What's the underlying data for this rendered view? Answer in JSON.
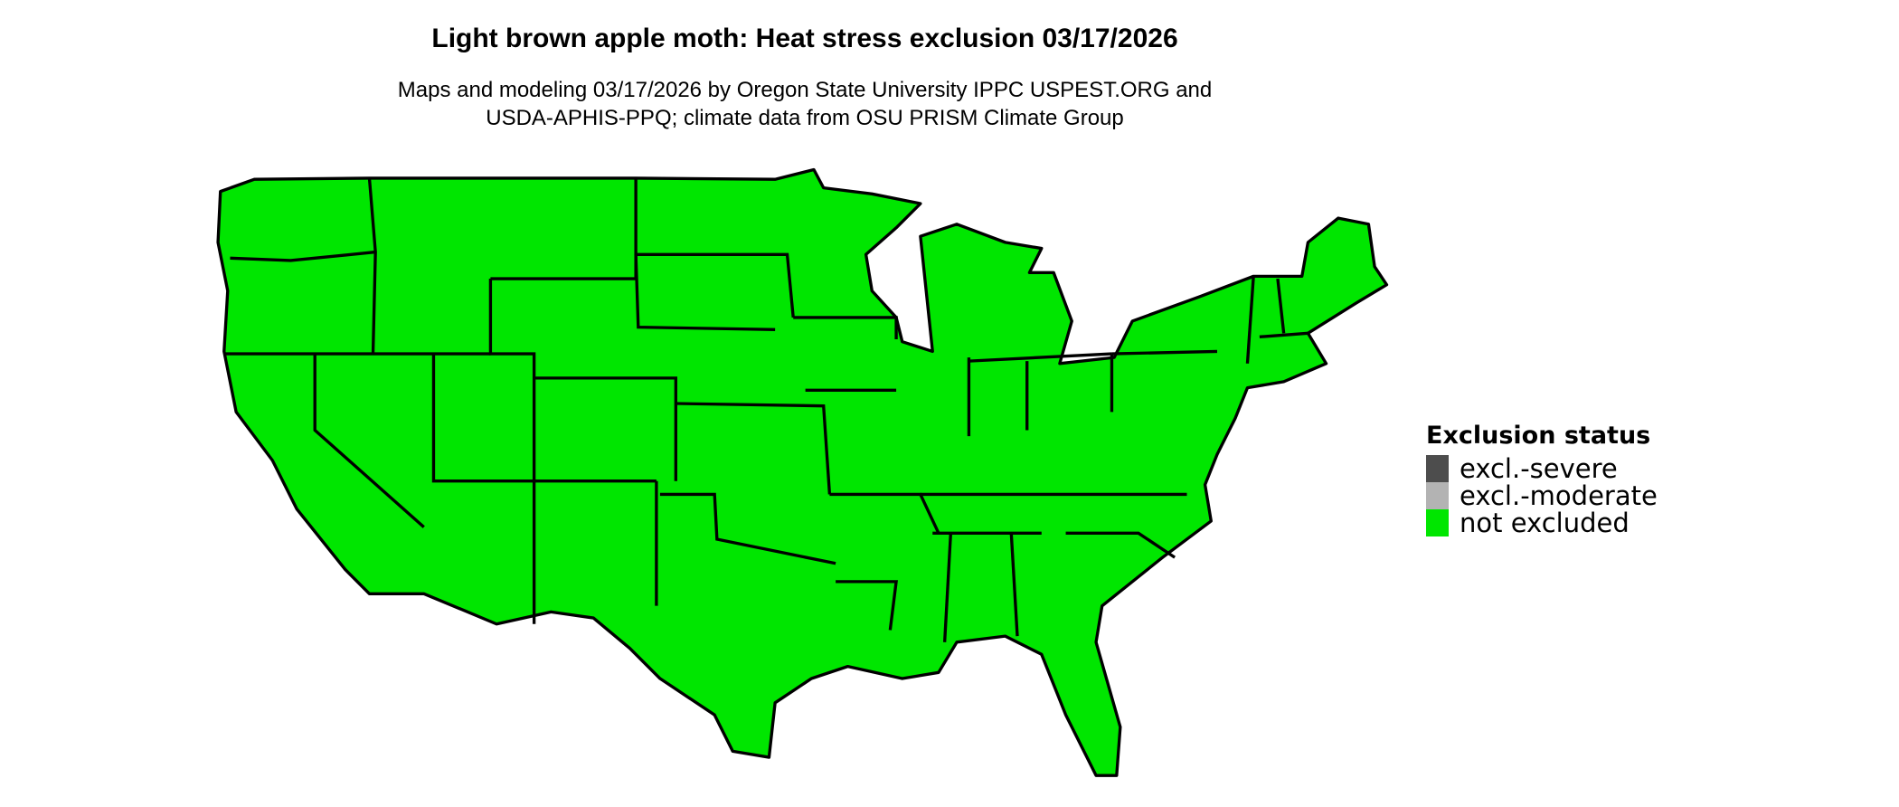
{
  "title": "Light brown apple moth: Heat stress exclusion 03/17/2026",
  "subtitle_line1": "Maps and modeling 03/17/2026 by Oregon State University IPPC USPEST.ORG and",
  "subtitle_line2": "USDA-APHIS-PPQ; climate data from OSU PRISM Climate Group",
  "map": {
    "region": "Contiguous United States",
    "fill_status": "not excluded",
    "fill_color": "#00e600",
    "border_color": "#000000"
  },
  "legend": {
    "title": "Exclusion status",
    "items": [
      {
        "label": "excl.-severe",
        "color": "#4d4d4d"
      },
      {
        "label": "excl.-moderate",
        "color": "#b3b3b3"
      },
      {
        "label": "not excluded",
        "color": "#00e600"
      }
    ]
  }
}
